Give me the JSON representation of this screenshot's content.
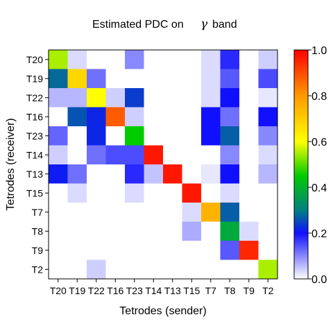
{
  "chart_data": {
    "type": "heatmap",
    "title": {
      "before": "Estimated PDC on",
      "greek": "γ",
      "after": "band"
    },
    "xlabel": "Tetrodes (sender)",
    "ylabel": "Tetrodes (receiver)",
    "x_categories": [
      "T20",
      "T19",
      "T22",
      "T16",
      "T23",
      "T14",
      "T13",
      "T15",
      "T7",
      "T8",
      "T9",
      "T2"
    ],
    "y_categories": [
      "T20",
      "T19",
      "T22",
      "T16",
      "T23",
      "T14",
      "T13",
      "T15",
      "T7",
      "T8",
      "T9",
      "T2"
    ],
    "values": [
      [
        0.55,
        0.03,
        0.0,
        0.0,
        0.1,
        0.0,
        0.0,
        0.0,
        0.03,
        0.18,
        0.0,
        0.04
      ],
      [
        0.28,
        0.68,
        0.12,
        0.0,
        0.0,
        0.0,
        0.0,
        0.0,
        0.03,
        0.14,
        0.0,
        0.15
      ],
      [
        0.06,
        0.06,
        0.6,
        0.04,
        0.24,
        0.0,
        0.0,
        0.0,
        0.03,
        0.2,
        0.0,
        0.02
      ],
      [
        0.0,
        0.26,
        0.22,
        0.88,
        0.04,
        0.0,
        0.0,
        0.0,
        0.2,
        0.12,
        0.0,
        0.2
      ],
      [
        0.13,
        0.0,
        0.22,
        0.0,
        0.45,
        0.0,
        0.0,
        0.0,
        0.2,
        0.27,
        0.0,
        0.1
      ],
      [
        0.04,
        0.0,
        0.12,
        0.15,
        0.15,
        0.97,
        0.0,
        0.0,
        0.0,
        0.1,
        0.0,
        0.03
      ],
      [
        0.21,
        0.12,
        0.0,
        0.0,
        0.18,
        0.05,
        0.97,
        0.0,
        0.02,
        0.2,
        0.0,
        0.06
      ],
      [
        0.0,
        0.03,
        0.0,
        0.0,
        0.03,
        0.0,
        0.0,
        0.97,
        0.0,
        0.03,
        0.0,
        0.0
      ],
      [
        0.0,
        0.0,
        0.0,
        0.0,
        0.0,
        0.0,
        0.0,
        0.03,
        0.75,
        0.27,
        0.0,
        0.0
      ],
      [
        0.0,
        0.0,
        0.0,
        0.0,
        0.0,
        0.0,
        0.0,
        0.07,
        0.0,
        0.38,
        0.03,
        0.0
      ],
      [
        0.0,
        0.0,
        0.0,
        0.0,
        0.0,
        0.0,
        0.0,
        0.0,
        0.0,
        0.14,
        0.95,
        0.0
      ],
      [
        0.0,
        0.0,
        0.04,
        0.0,
        0.0,
        0.0,
        0.0,
        0.0,
        0.0,
        0.0,
        0.0,
        0.55
      ]
    ],
    "zlim": [
      0,
      1
    ],
    "colorbar": {
      "ticks": [
        0.0,
        0.2,
        0.4,
        0.6,
        0.8,
        1.0
      ],
      "tick_labels": [
        "0.0",
        "0.2",
        "0.4",
        "0.6",
        "0.8",
        "1.0"
      ],
      "placement": "right"
    },
    "colorscale": [
      {
        "v": 0.0,
        "color": "#ffffff"
      },
      {
        "v": 0.2,
        "color": "#1010ff"
      },
      {
        "v": 0.3,
        "color": "#008080"
      },
      {
        "v": 0.45,
        "color": "#00cc00"
      },
      {
        "v": 0.6,
        "color": "#ffff00"
      },
      {
        "v": 0.8,
        "color": "#ff9900"
      },
      {
        "v": 1.0,
        "color": "#ff0000"
      }
    ],
    "grid": false,
    "legend": "none"
  }
}
